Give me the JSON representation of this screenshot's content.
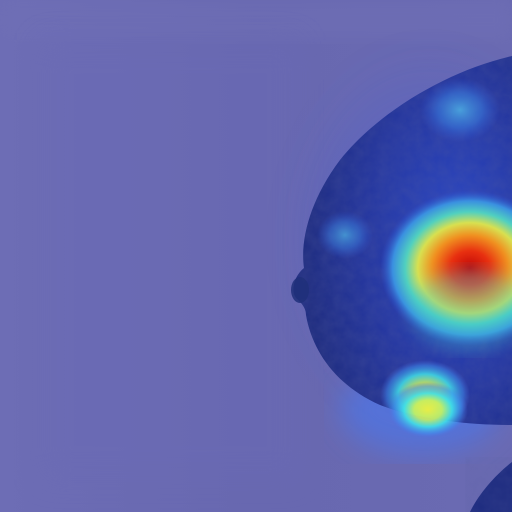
{
  "image": {
    "kind": "mammogram-heatmap-overlay",
    "colormap": "jet",
    "colors": {
      "background": "#6c6cb2",
      "background_edge": "#7272b8",
      "tissue": "#2e3a8a",
      "tissue_dark": "#1e2a74",
      "hot_red": "#d01010",
      "hot_orange": "#f07020",
      "hot_yellow": "#f0e040",
      "cool_cyan": "#40c0d0",
      "mid_blue": "#3858d8"
    },
    "hotspots": [
      {
        "name": "primary",
        "intensity": 1.0
      },
      {
        "name": "lower",
        "intensity": 0.7
      },
      {
        "name": "upper",
        "intensity": 0.4
      },
      {
        "name": "left",
        "intensity": 0.35
      }
    ]
  }
}
